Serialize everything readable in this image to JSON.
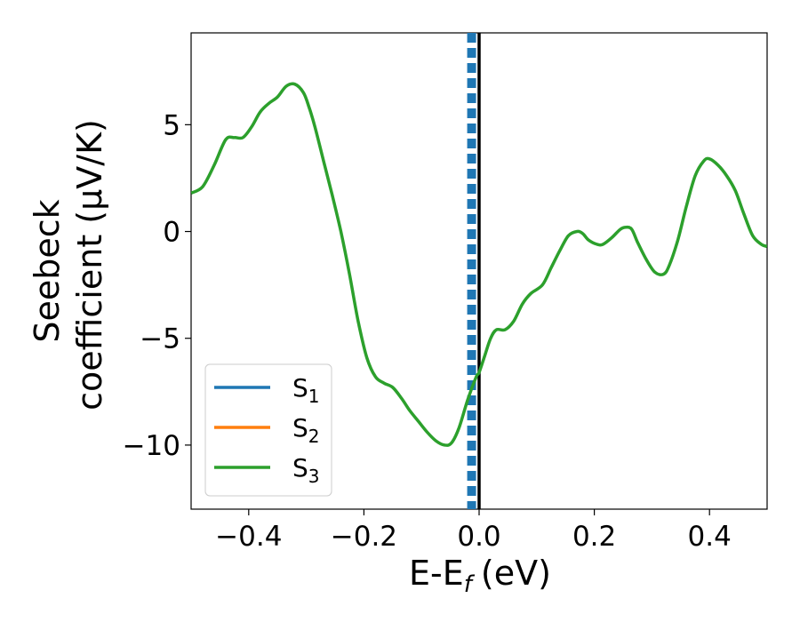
{
  "chart_data": {
    "type": "line",
    "xlabel": "E-E",
    "xlabel_sub": "f",
    "xlabel_unit": "(eV)",
    "ylabel_line1": "Seebeck",
    "ylabel_line2": "coefficient  (μV/K)",
    "xlim": [
      -0.5,
      0.5
    ],
    "ylim": [
      -13,
      9.3
    ],
    "xticks": [
      -0.4,
      -0.2,
      0.0,
      0.2,
      0.4
    ],
    "xtick_labels": [
      "−0.4",
      "−0.2",
      "0.0",
      "0.2",
      "0.4"
    ],
    "yticks": [
      5,
      0,
      -5,
      -10
    ],
    "ytick_labels": [
      "5",
      "0",
      "−5",
      "−10"
    ],
    "legend_position": "lower-left",
    "series": [
      {
        "name": "S",
        "sub": "1",
        "color": "#1f77b4"
      },
      {
        "name": "S",
        "sub": "2",
        "color": "#ff7f0e"
      },
      {
        "name": "S",
        "sub": "3",
        "color": "#2ca02c"
      }
    ],
    "curve": {
      "color": "#2ca02c",
      "x": [
        -0.5,
        -0.48,
        -0.46,
        -0.44,
        -0.425,
        -0.41,
        -0.395,
        -0.38,
        -0.365,
        -0.35,
        -0.335,
        -0.32,
        -0.305,
        -0.295,
        -0.285,
        -0.27,
        -0.255,
        -0.24,
        -0.225,
        -0.21,
        -0.195,
        -0.18,
        -0.165,
        -0.15,
        -0.135,
        -0.12,
        -0.105,
        -0.09,
        -0.075,
        -0.06,
        -0.048,
        -0.035,
        -0.02,
        -0.005,
        0.0,
        0.01,
        0.02,
        0.03,
        0.045,
        0.06,
        0.075,
        0.09,
        0.11,
        0.125,
        0.14,
        0.155,
        0.17,
        0.18,
        0.19,
        0.205,
        0.215,
        0.23,
        0.245,
        0.255,
        0.265,
        0.275,
        0.29,
        0.305,
        0.32,
        0.33,
        0.345,
        0.36,
        0.375,
        0.39,
        0.4,
        0.415,
        0.43,
        0.445,
        0.46,
        0.475,
        0.49,
        0.5
      ],
      "y": [
        1.8,
        2.1,
        3.1,
        4.3,
        4.4,
        4.4,
        4.9,
        5.6,
        6.0,
        6.3,
        6.8,
        6.9,
        6.5,
        5.8,
        4.9,
        3.3,
        1.7,
        0.0,
        -2.0,
        -4.2,
        -5.9,
        -6.8,
        -7.1,
        -7.3,
        -7.8,
        -8.4,
        -8.9,
        -9.4,
        -9.8,
        -10.0,
        -9.9,
        -9.2,
        -7.9,
        -6.8,
        -6.6,
        -5.8,
        -5.0,
        -4.6,
        -4.6,
        -4.2,
        -3.4,
        -2.9,
        -2.5,
        -1.7,
        -0.9,
        -0.2,
        0.0,
        -0.1,
        -0.4,
        -0.6,
        -0.6,
        -0.3,
        0.1,
        0.2,
        0.1,
        -0.5,
        -1.3,
        -1.9,
        -2.0,
        -1.6,
        -0.4,
        1.2,
        2.6,
        3.3,
        3.4,
        3.1,
        2.6,
        1.9,
        0.8,
        -0.2,
        -0.6,
        -0.7
      ]
    },
    "dashed_vline": {
      "x": -0.013,
      "color": "#1f77b4"
    },
    "solid_vline": {
      "x": 0.0,
      "color": "#000000"
    }
  }
}
